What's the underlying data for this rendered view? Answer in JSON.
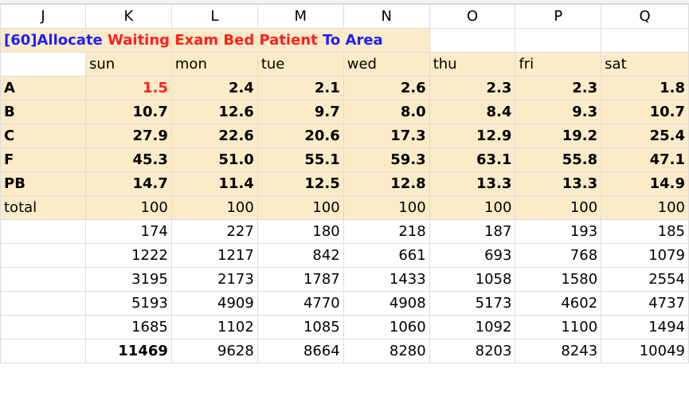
{
  "columns": [
    "J",
    "K",
    "L",
    "M",
    "N",
    "O",
    "P",
    "Q"
  ],
  "title": {
    "part1": "[60]Allocate ",
    "part2": "Waiting Exam Bed Patient ",
    "part3": "To Area"
  },
  "days": [
    "sun",
    "mon",
    "tue",
    "wed",
    "thu",
    "fri",
    "sat"
  ],
  "pct_rows": [
    {
      "label": "A",
      "values": [
        "1.5",
        "2.4",
        "2.1",
        "2.6",
        "2.3",
        "2.3",
        "1.8"
      ]
    },
    {
      "label": "B",
      "values": [
        "10.7",
        "12.6",
        "9.7",
        "8.0",
        "8.4",
        "9.3",
        "10.7"
      ]
    },
    {
      "label": "C",
      "values": [
        "27.9",
        "22.6",
        "20.6",
        "17.3",
        "12.9",
        "19.2",
        "25.4"
      ]
    },
    {
      "label": "F",
      "values": [
        "45.3",
        "51.0",
        "55.1",
        "59.3",
        "63.1",
        "55.8",
        "47.1"
      ]
    },
    {
      "label": "PB",
      "values": [
        "14.7",
        "11.4",
        "12.5",
        "12.8",
        "13.3",
        "13.3",
        "14.9"
      ]
    }
  ],
  "total_row": {
    "label": "total",
    "values": [
      "100",
      "100",
      "100",
      "100",
      "100",
      "100",
      "100"
    ]
  },
  "count_rows": [
    [
      "174",
      "227",
      "180",
      "218",
      "187",
      "193",
      "185"
    ],
    [
      "1222",
      "1217",
      "842",
      "661",
      "693",
      "768",
      "1079"
    ],
    [
      "3195",
      "2173",
      "1787",
      "1433",
      "1058",
      "1580",
      "2554"
    ],
    [
      "5193",
      "4909",
      "4770",
      "4908",
      "5173",
      "4602",
      "4737"
    ],
    [
      "1685",
      "1102",
      "1085",
      "1060",
      "1092",
      "1100",
      "1494"
    ],
    [
      "11469",
      "9628",
      "8664",
      "8280",
      "8203",
      "8243",
      "10049"
    ]
  ],
  "colors": {
    "accent_red": "#ff2020",
    "accent_blue": "#1f1fff",
    "fill": "#fbebc8"
  }
}
